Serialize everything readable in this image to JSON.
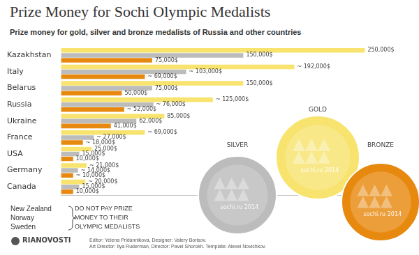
{
  "chart_data": {
    "type": "bar",
    "title": "Prize Money for Sochi Olympic Medalists",
    "subtitle": "Prize money for gold, silver and bronze medalists of Russia and other countries",
    "orientation": "horizontal",
    "categories": [
      "Kazakhstan",
      "Italy",
      "Belarus",
      "Russia",
      "Ukraine",
      "France",
      "USA",
      "Germany",
      "Canada"
    ],
    "series": [
      {
        "name": "GOLD",
        "color": "#f7e36e",
        "values": [
          250000,
          192000,
          150000,
          125000,
          85000,
          69000,
          25000,
          21000,
          20000
        ],
        "value_labels": [
          "250,000$",
          "~ 192,000$",
          "150,000$",
          "~ 125,000$",
          "85,000$",
          "~ 69,000$",
          "25,000$",
          "~ 21,000$",
          "~ 20,000$"
        ]
      },
      {
        "name": "SILVER",
        "color": "#bcbcbc",
        "values": [
          150000,
          103000,
          75000,
          76000,
          62000,
          27000,
          15000,
          14000,
          15000
        ],
        "value_labels": [
          "150,000$",
          "~ 103,000$",
          "75,000$",
          "~ 76,000$",
          "62,000$",
          "~ 27,000$",
          "15,000$",
          "~ 14,000$",
          "15,000$"
        ]
      },
      {
        "name": "BRONZE",
        "color": "#e8890f",
        "values": [
          75000,
          69000,
          50000,
          52000,
          41000,
          18000,
          10000,
          10000,
          10000
        ],
        "value_labels": [
          "75,000$",
          "~ 69,000$",
          "50,000$",
          "~ 52,000$",
          "41,000$",
          "~ 18,000$",
          "10,000$",
          "~ 10,000$",
          "10,000$"
        ]
      }
    ],
    "xlim": [
      0,
      290000
    ],
    "grid": false,
    "data_labels": true,
    "tick_labels": "y"
  },
  "medal_logo": "sochi.ru 2014",
  "notes": {
    "countries": [
      "New Zealand",
      "Norway",
      "Sweden"
    ],
    "text": [
      "DO NOT PAY PRIZE",
      "MONEY TO THEIR",
      "OLYMPIC MEDALISTS"
    ]
  },
  "logo": "RIANOVOSTI",
  "credits": [
    "Editor: Yelena Pridannikova, Designer: Valery Borisov.",
    "Art Director: Ilya Ruderman, Director: Pavel Shorokh. Template: Alexei Novichkov."
  ]
}
